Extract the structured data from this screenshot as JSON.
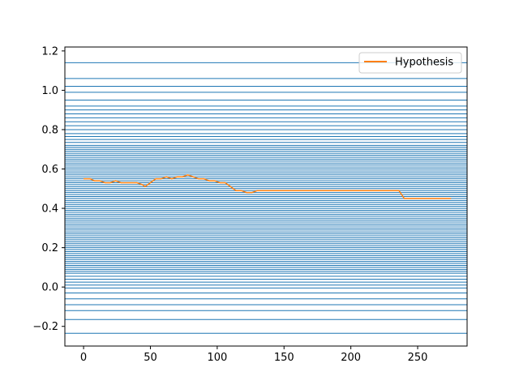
{
  "chart_data": {
    "type": "line",
    "title": "",
    "xlabel": "",
    "ylabel": "",
    "xlim": [
      -14,
      287
    ],
    "ylim": [
      -0.3,
      1.22
    ],
    "x_ticks": [
      0,
      50,
      100,
      150,
      200,
      250
    ],
    "y_ticks": [
      -0.2,
      0.0,
      0.2,
      0.4,
      0.6,
      0.8,
      1.0,
      1.2
    ],
    "x_tick_labels": [
      "0",
      "50",
      "100",
      "150",
      "200",
      "250"
    ],
    "y_tick_labels": [
      "−0.2",
      "0.0",
      "0.2",
      "0.4",
      "0.6",
      "0.8",
      "1.0",
      "1.2"
    ],
    "grid": false,
    "legend": {
      "placement": "top-right",
      "entries": [
        {
          "label": "Hypothesis",
          "color": "#ff7f0e"
        }
      ]
    },
    "horizontal_lines": {
      "color": "#1f77b4",
      "y": [
        1.14,
        1.06,
        1.02,
        0.99,
        0.95,
        0.92,
        0.9,
        0.88,
        0.86,
        0.84,
        0.82,
        0.8,
        0.78,
        0.765,
        0.75,
        0.735,
        0.72,
        0.71,
        0.7,
        0.69,
        0.68,
        0.67,
        0.66,
        0.65,
        0.64,
        0.63,
        0.62,
        0.61,
        0.6,
        0.59,
        0.58,
        0.57,
        0.56,
        0.55,
        0.54,
        0.53,
        0.52,
        0.51,
        0.5,
        0.49,
        0.48,
        0.47,
        0.46,
        0.45,
        0.44,
        0.43,
        0.42,
        0.41,
        0.4,
        0.39,
        0.38,
        0.37,
        0.36,
        0.35,
        0.34,
        0.33,
        0.32,
        0.31,
        0.3,
        0.29,
        0.28,
        0.27,
        0.26,
        0.25,
        0.24,
        0.23,
        0.22,
        0.21,
        0.2,
        0.19,
        0.18,
        0.17,
        0.16,
        0.15,
        0.14,
        0.13,
        0.12,
        0.11,
        0.1,
        0.09,
        0.08,
        0.07,
        0.055,
        0.04,
        0.025,
        0.01,
        -0.005,
        -0.03,
        -0.06,
        -0.09,
        -0.12,
        -0.165,
        -0.235
      ]
    },
    "series": [
      {
        "name": "Hypothesis",
        "color": "#ff7f0e",
        "x": [
          0,
          5,
          8,
          12,
          16,
          20,
          24,
          28,
          32,
          36,
          40,
          44,
          46,
          50,
          54,
          58,
          62,
          66,
          70,
          74,
          78,
          82,
          86,
          90,
          94,
          98,
          102,
          106,
          110,
          114,
          118,
          122,
          126,
          130,
          134,
          138,
          150,
          175,
          200,
          225,
          236,
          240,
          244,
          250,
          260,
          275
        ],
        "y": [
          0.55,
          0.55,
          0.54,
          0.54,
          0.53,
          0.53,
          0.54,
          0.53,
          0.53,
          0.53,
          0.53,
          0.52,
          0.51,
          0.53,
          0.55,
          0.55,
          0.56,
          0.55,
          0.56,
          0.56,
          0.57,
          0.56,
          0.55,
          0.55,
          0.54,
          0.54,
          0.53,
          0.53,
          0.51,
          0.49,
          0.49,
          0.48,
          0.48,
          0.49,
          0.49,
          0.49,
          0.49,
          0.49,
          0.49,
          0.49,
          0.49,
          0.45,
          0.45,
          0.45,
          0.45,
          0.45
        ]
      }
    ]
  }
}
